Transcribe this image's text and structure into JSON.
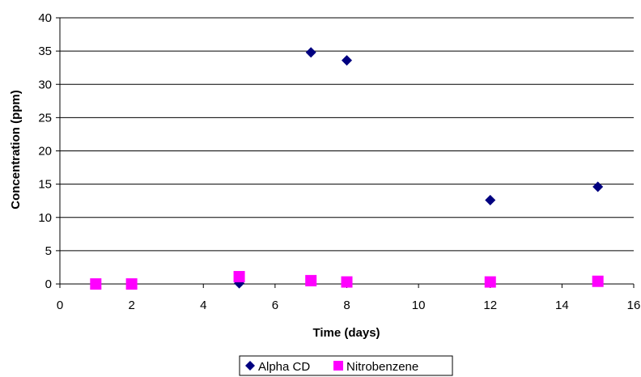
{
  "chart_data": {
    "type": "scatter",
    "title": "",
    "xlabel": "Time (days)",
    "ylabel": "Concentration (ppm)",
    "xlim": [
      0,
      16
    ],
    "ylim": [
      0,
      40
    ],
    "xticks": [
      0,
      2,
      4,
      6,
      8,
      10,
      12,
      14,
      16
    ],
    "yticks": [
      0,
      5,
      10,
      15,
      20,
      25,
      30,
      35,
      40
    ],
    "grid": "horizontal",
    "legend_position": "bottom",
    "series": [
      {
        "name": "Alpha CD",
        "marker": "diamond",
        "color": "#000080",
        "points": [
          {
            "x": 5,
            "y": 0.1
          },
          {
            "x": 7,
            "y": 34.8
          },
          {
            "x": 8,
            "y": 33.6
          },
          {
            "x": 12,
            "y": 12.6
          },
          {
            "x": 15,
            "y": 14.6
          }
        ]
      },
      {
        "name": "Nitrobenzene",
        "marker": "square",
        "color": "#FF00FF",
        "points": [
          {
            "x": 1,
            "y": 0.0
          },
          {
            "x": 2,
            "y": 0.0
          },
          {
            "x": 5,
            "y": 1.1
          },
          {
            "x": 7,
            "y": 0.5
          },
          {
            "x": 8,
            "y": 0.3
          },
          {
            "x": 12,
            "y": 0.3
          },
          {
            "x": 15,
            "y": 0.4
          }
        ]
      }
    ]
  }
}
